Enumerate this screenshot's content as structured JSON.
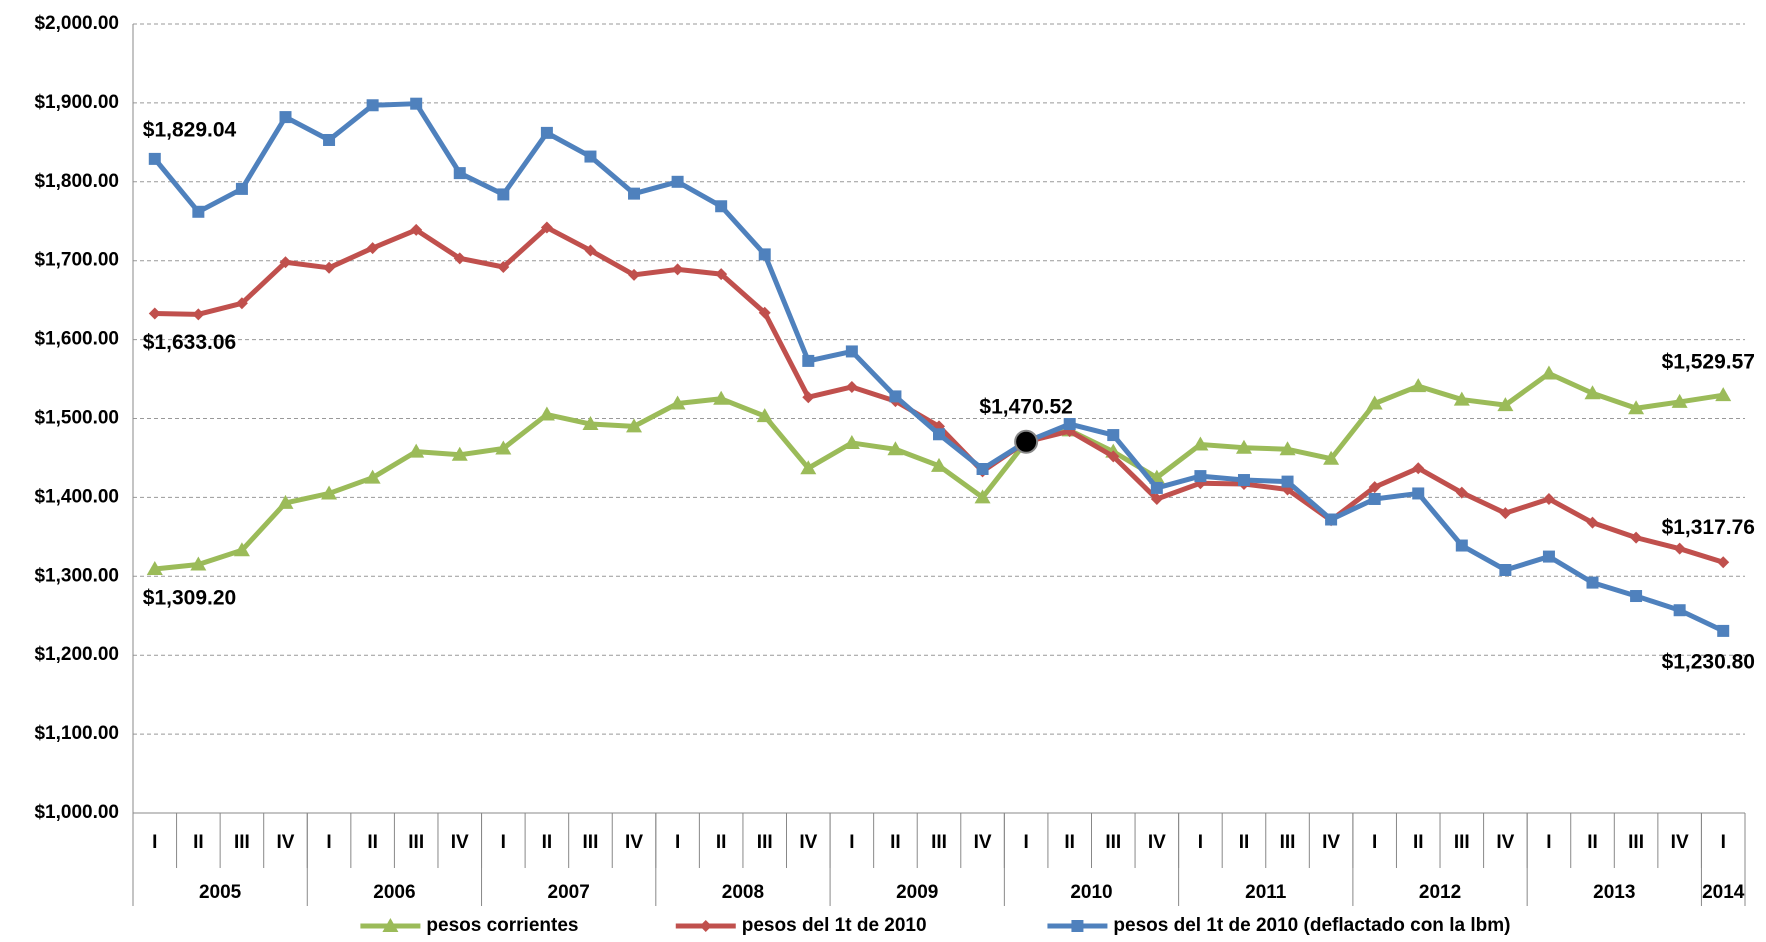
{
  "chart_data": {
    "type": "line",
    "categories": [
      "I",
      "II",
      "III",
      "IV",
      "I",
      "II",
      "III",
      "IV",
      "I",
      "II",
      "III",
      "IV",
      "I",
      "II",
      "III",
      "IV",
      "I",
      "II",
      "III",
      "IV",
      "I",
      "II",
      "III",
      "IV",
      "I",
      "II",
      "III",
      "IV",
      "I",
      "II",
      "III",
      "IV",
      "I",
      "II",
      "III",
      "IV",
      "I"
    ],
    "years": [
      "2005",
      "2006",
      "2007",
      "2008",
      "2009",
      "2010",
      "2011",
      "2012",
      "2013",
      "2014"
    ],
    "ylim": [
      1000,
      2000
    ],
    "yticks": [
      {
        "value": 1000,
        "label": "$1,000.00"
      },
      {
        "value": 1100,
        "label": "$1,100.00"
      },
      {
        "value": 1200,
        "label": "$1,200.00"
      },
      {
        "value": 1300,
        "label": "$1,300.00"
      },
      {
        "value": 1400,
        "label": "$1,400.00"
      },
      {
        "value": 1500,
        "label": "$1,500.00"
      },
      {
        "value": 1600,
        "label": "$1,600.00"
      },
      {
        "value": 1700,
        "label": "$1,700.00"
      },
      {
        "value": 1800,
        "label": "$1,800.00"
      },
      {
        "value": 1900,
        "label": "$1,900.00"
      },
      {
        "value": 2000,
        "label": "$2,000.00"
      }
    ],
    "grid": true,
    "legend": "bottom",
    "series": [
      {
        "name": "pesos corrientes",
        "color": "#9bbb59",
        "marker": "triangle",
        "values": [
          1309.2,
          1315,
          1333,
          1393,
          1405,
          1425,
          1458,
          1454,
          1462,
          1505,
          1493,
          1490,
          1519,
          1525,
          1503,
          1437,
          1469,
          1461,
          1440,
          1400,
          1470.52,
          1485,
          1458,
          1425,
          1467,
          1463,
          1461,
          1449,
          1519,
          1541,
          1524,
          1517,
          1557,
          1532,
          1513,
          1521,
          1529.57
        ],
        "value_labels": [
          "$1,309.20",
          null,
          null,
          null,
          null,
          null,
          null,
          null,
          null,
          null,
          null,
          null,
          null,
          null,
          null,
          null,
          null,
          null,
          null,
          null,
          "$1,470.52",
          null,
          null,
          null,
          null,
          null,
          null,
          null,
          null,
          null,
          null,
          null,
          null,
          null,
          null,
          null,
          "$1,529.57"
        ]
      },
      {
        "name": "pesos del 1t de 2010",
        "color": "#c0504d",
        "marker": "diamond",
        "values": [
          1633.06,
          1632,
          1646,
          1698,
          1691,
          1716,
          1739,
          1703,
          1692,
          1742,
          1713,
          1682,
          1689,
          1683,
          1634,
          1527,
          1540,
          1522,
          1490,
          1433,
          1470.52,
          1484,
          1452,
          1398,
          1418,
          1417,
          1410,
          1371,
          1413,
          1437,
          1406,
          1380,
          1398,
          1368,
          1349,
          1335,
          1317.76
        ],
        "value_labels": [
          "$1,633.06",
          null,
          null,
          null,
          null,
          null,
          null,
          null,
          null,
          null,
          null,
          null,
          null,
          null,
          null,
          null,
          null,
          null,
          null,
          null,
          null,
          null,
          null,
          null,
          null,
          null,
          null,
          null,
          null,
          null,
          null,
          null,
          null,
          null,
          null,
          null,
          "$1,317.76"
        ]
      },
      {
        "name": "pesos del 1t de 2010 (deflactado con la lbm)",
        "color": "#4f81bd",
        "marker": "square",
        "values": [
          1829.04,
          1762,
          1791,
          1882,
          1853,
          1897,
          1899,
          1811,
          1784,
          1862,
          1832,
          1785,
          1800,
          1769,
          1708,
          1573,
          1585,
          1528,
          1480,
          1436,
          1470.52,
          1493,
          1479,
          1412,
          1427,
          1422,
          1420,
          1372,
          1398,
          1405,
          1339,
          1308,
          1325,
          1292,
          1275,
          1257,
          1230.8
        ],
        "value_labels": [
          "$1,829.04",
          null,
          null,
          null,
          null,
          null,
          null,
          null,
          null,
          null,
          null,
          null,
          null,
          null,
          null,
          null,
          null,
          null,
          null,
          null,
          null,
          null,
          null,
          null,
          null,
          null,
          null,
          null,
          null,
          null,
          null,
          null,
          null,
          null,
          null,
          null,
          "$1,230.80"
        ]
      }
    ]
  }
}
